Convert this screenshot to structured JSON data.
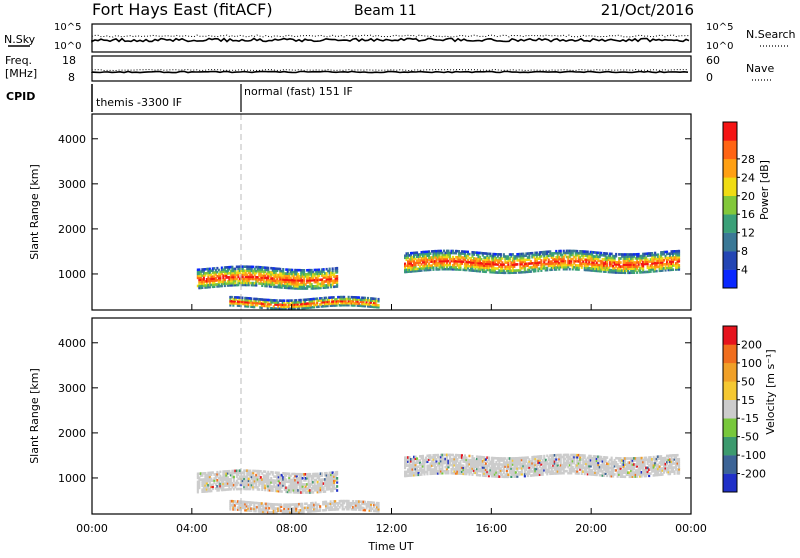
{
  "header": {
    "station": "Fort Hays East (fitACF)",
    "beam": "Beam 11",
    "date": "21/Oct/2016"
  },
  "status_panels": {
    "nsky_label": "N.Sky",
    "nsearch_label": "N.Search",
    "nsky_ticks_left": [
      "10^5",
      "10^0"
    ],
    "nsky_ticks_right": [
      "10^5",
      "10^0"
    ],
    "freq_label_1": "Freq.",
    "freq_label_2": "[MHz]",
    "freq_ticks_left": [
      "18",
      "8"
    ],
    "nave_label": "Nave",
    "nave_ticks_right": [
      "60",
      "0"
    ],
    "cpid_label": "CPID",
    "cpid_modes": [
      {
        "name": "themis -3300 IF",
        "start_hour": 0
      },
      {
        "name": "normal (fast) 151 IF",
        "start_hour": 6
      }
    ]
  },
  "chart_data": [
    {
      "type": "heatmap",
      "title": "Power",
      "xlabel": "Time UT",
      "ylabel": "Slant Range [km]",
      "xlim": [
        0,
        24
      ],
      "ylim": [
        200,
        4550
      ],
      "x_ticks": [
        "00:00",
        "04:00",
        "08:00",
        "12:00",
        "16:00",
        "20:00",
        "00:00"
      ],
      "y_ticks": [
        1000,
        2000,
        3000,
        4000
      ],
      "colorbar": {
        "label": "Power [dB]",
        "ticks": [
          "4",
          "8",
          "12",
          "16",
          "20",
          "24",
          "28"
        ],
        "colors": [
          "#0a28ff",
          "#2446b4",
          "#3a7896",
          "#3aa078",
          "#82c83a",
          "#f0dc14",
          "#ffa014",
          "#ff6414",
          "#f51414"
        ]
      },
      "echo_regions": [
        {
          "t_start": 4.2,
          "t_end": 9.8,
          "range_low": 700,
          "range_high": 1150
        },
        {
          "t_start": 5.5,
          "t_end": 11.5,
          "range_low": 250,
          "range_high": 450
        },
        {
          "t_start": 12.5,
          "t_end": 23.5,
          "range_low": 1050,
          "range_high": 1500
        }
      ]
    },
    {
      "type": "heatmap",
      "title": "Velocity",
      "xlabel": "Time UT",
      "ylabel": "Slant Range [km]",
      "xlim": [
        0,
        24
      ],
      "ylim": [
        200,
        4550
      ],
      "x_ticks": [
        "00:00",
        "04:00",
        "08:00",
        "12:00",
        "16:00",
        "20:00",
        "00:00"
      ],
      "y_ticks": [
        1000,
        2000,
        3000,
        4000
      ],
      "colorbar": {
        "label": "Velocity [m s⁻¹]",
        "ticks": [
          "200",
          "100",
          "50",
          "15",
          "-15",
          "-50",
          "-100",
          "-200"
        ],
        "colors": [
          "#2030c8",
          "#3c6496",
          "#3c9a6e",
          "#78c83c",
          "#cccccc",
          "#f5c832",
          "#f0a028",
          "#f06e1e",
          "#e6141e"
        ]
      },
      "echo_regions": [
        {
          "t_start": 4.2,
          "t_end": 9.8,
          "range_low": 700,
          "range_high": 1150
        },
        {
          "t_start": 5.5,
          "t_end": 11.5,
          "range_low": 250,
          "range_high": 450
        },
        {
          "t_start": 12.5,
          "t_end": 23.5,
          "range_low": 1050,
          "range_high": 1500
        }
      ]
    }
  ]
}
